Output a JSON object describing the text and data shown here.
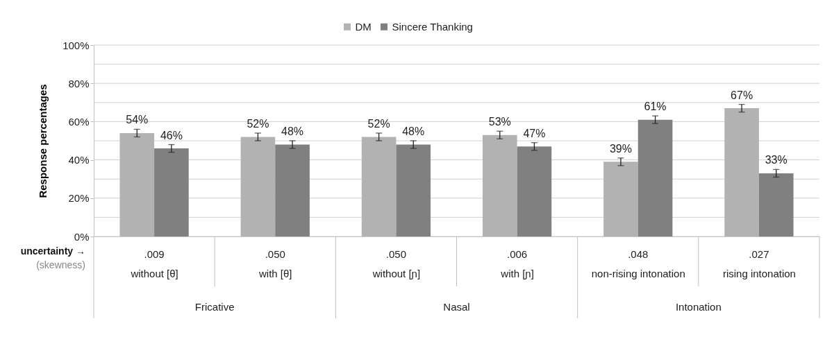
{
  "chart_data": {
    "type": "bar",
    "ylabel": "Response percentages",
    "categories": [
      "without [θ]",
      "with [θ]",
      "without [ɲ]",
      "with [ɲ]",
      "non-rising intonation",
      "rising intonation"
    ],
    "series": [
      {
        "name": "DM",
        "color": "#b2b2b2",
        "values": [
          54,
          52,
          52,
          53,
          39,
          67
        ],
        "errors": [
          2,
          2,
          2,
          2,
          2,
          2
        ],
        "value_labels": [
          "54%",
          "52%",
          "52%",
          "53%",
          "39%",
          "67%"
        ]
      },
      {
        "name": "Sincere Thanking",
        "color": "#808080",
        "values": [
          46,
          48,
          48,
          47,
          61,
          33
        ],
        "errors": [
          2,
          2,
          2,
          2,
          2,
          2
        ],
        "value_labels": [
          "46%",
          "48%",
          "48%",
          "47%",
          "61%",
          "33%"
        ]
      }
    ],
    "ylim": [
      0,
      100
    ],
    "yticks": [
      {
        "value": 0,
        "label": "0%"
      },
      {
        "value": 10,
        "label": null
      },
      {
        "value": 20,
        "label": "20%"
      },
      {
        "value": 30,
        "label": null
      },
      {
        "value": 40,
        "label": "40%"
      },
      {
        "value": 50,
        "label": null
      },
      {
        "value": 60,
        "label": "60%"
      },
      {
        "value": 70,
        "label": null
      },
      {
        "value": 80,
        "label": "80%"
      },
      {
        "value": 90,
        "label": null
      },
      {
        "value": 100,
        "label": "100%"
      }
    ],
    "grid": true,
    "legend": "top",
    "annotations": [
      "uncertainty →",
      "(skewness)",
      ".009",
      ".050",
      ".050",
      ".006",
      ".048",
      ".027",
      "Fricative",
      "Nasal",
      "Intonation"
    ]
  }
}
